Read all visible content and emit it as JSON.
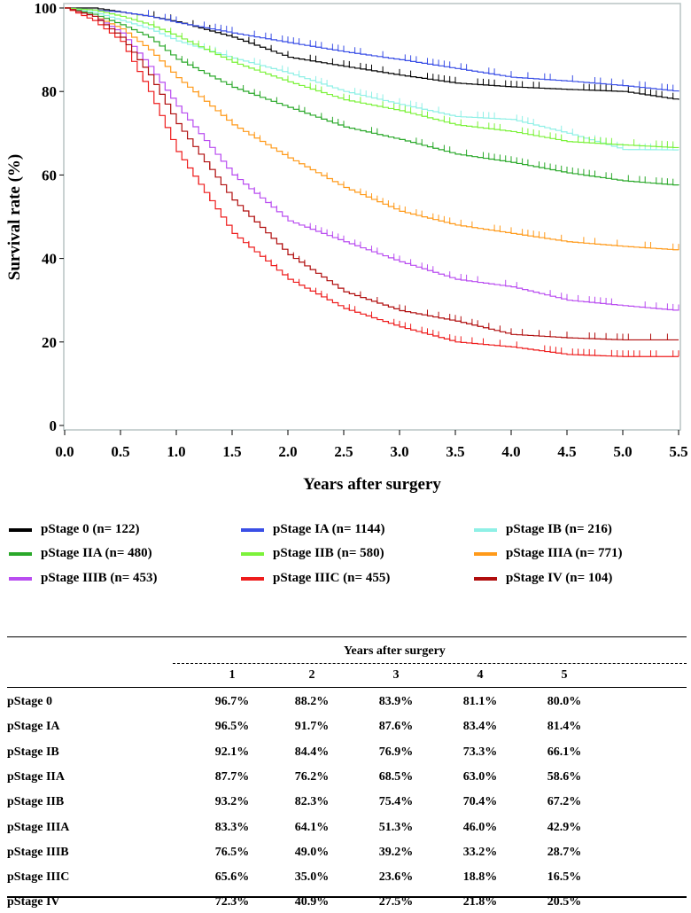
{
  "chart_data": {
    "type": "line",
    "title": "",
    "xlabel": "Years after surgery",
    "ylabel": "Survival rate (%)",
    "xlim": [
      0,
      5.5
    ],
    "ylim": [
      0,
      100
    ],
    "xticks": [
      "0.0",
      "0.5",
      "1.0",
      "1.5",
      "2.0",
      "2.5",
      "3.0",
      "3.5",
      "4.0",
      "4.5",
      "5.0",
      "5.5"
    ],
    "yticks": [
      "0",
      "20",
      "40",
      "60",
      "80",
      "100"
    ],
    "grid": false,
    "legend_position": "bottom",
    "x": [
      0,
      0.25,
      0.5,
      0.75,
      1,
      1.5,
      2,
      2.5,
      3,
      3.5,
      4,
      4.5,
      5,
      5.5
    ],
    "series": [
      {
        "name": "pStage 0 (n= 122)",
        "color": "#000000",
        "values": [
          100,
          100,
          99,
          98,
          96.7,
          93,
          88.2,
          86,
          83.9,
          82,
          81.1,
          80.5,
          80,
          78
        ]
      },
      {
        "name": "pStage IA (n= 1144)",
        "color": "#3a4fe6",
        "values": [
          100,
          99.5,
          99,
          98,
          96.5,
          94,
          91.7,
          89.5,
          87.6,
          85.5,
          83.4,
          82.5,
          81.4,
          80
        ]
      },
      {
        "name": "pStage IB (n= 216)",
        "color": "#8ff0e6",
        "values": [
          100,
          99,
          97,
          95,
          92.1,
          88,
          84.4,
          80,
          76.9,
          74,
          73.3,
          70,
          66.1,
          66
        ]
      },
      {
        "name": "pStage IIA (n= 480)",
        "color": "#2aa82a",
        "values": [
          100,
          98.5,
          96,
          93,
          87.7,
          81,
          76.2,
          71.5,
          68.5,
          65,
          63,
          60.5,
          58.6,
          57.5
        ]
      },
      {
        "name": "pStage IIB (n= 580)",
        "color": "#7cf23a",
        "values": [
          100,
          99.5,
          98,
          96,
          93.2,
          87,
          82.3,
          78,
          75.4,
          72,
          70.4,
          68,
          67.2,
          66.5
        ]
      },
      {
        "name": "pStage IIIA (n= 771)",
        "color": "#ff9a1a",
        "values": [
          100,
          98,
          95,
          90,
          83.3,
          72,
          64.1,
          57,
          51.3,
          48,
          46,
          44,
          42.9,
          42
        ]
      },
      {
        "name": "pStage IIIB (n= 453)",
        "color": "#b94df0",
        "values": [
          100,
          98,
          94,
          86,
          76.5,
          60,
          49,
          44,
          39.2,
          35,
          33.2,
          30,
          28.7,
          27.5
        ]
      },
      {
        "name": "pStage IIIC (n= 455)",
        "color": "#ee1c1c",
        "values": [
          100,
          97,
          92,
          80,
          65.6,
          46,
          35,
          28,
          23.6,
          20,
          18.8,
          17,
          16.5,
          16.5
        ]
      },
      {
        "name": "pStage IV (n= 104)",
        "color": "#b00d0d",
        "values": [
          100,
          98,
          93,
          84,
          72.3,
          54,
          40.9,
          32,
          27.5,
          25,
          21.8,
          21,
          20.5,
          20.5
        ]
      }
    ]
  },
  "table": {
    "group_header": "Years after surgery",
    "columns": [
      "1",
      "2",
      "3",
      "4",
      "5"
    ],
    "rows": [
      {
        "label": "pStage 0",
        "values": [
          "96.7%",
          "88.2%",
          "83.9%",
          "81.1%",
          "80.0%"
        ]
      },
      {
        "label": "pStage IA",
        "values": [
          "96.5%",
          "91.7%",
          "87.6%",
          "83.4%",
          "81.4%"
        ]
      },
      {
        "label": "pStage IB",
        "values": [
          "92.1%",
          "84.4%",
          "76.9%",
          "73.3%",
          "66.1%"
        ]
      },
      {
        "label": "pStage IIA",
        "values": [
          "87.7%",
          "76.2%",
          "68.5%",
          "63.0%",
          "58.6%"
        ]
      },
      {
        "label": "pStage IIB",
        "values": [
          "93.2%",
          "82.3%",
          "75.4%",
          "70.4%",
          "67.2%"
        ]
      },
      {
        "label": "pStage IIIA",
        "values": [
          "83.3%",
          "64.1%",
          "51.3%",
          "46.0%",
          "42.9%"
        ]
      },
      {
        "label": "pStage IIIB",
        "values": [
          "76.5%",
          "49.0%",
          "39.2%",
          "33.2%",
          "28.7%"
        ]
      },
      {
        "label": "pStage IIIC",
        "values": [
          "65.6%",
          "35.0%",
          "23.6%",
          "18.8%",
          "16.5%"
        ]
      },
      {
        "label": "pStage IV",
        "values": [
          "72.3%",
          "40.9%",
          "27.5%",
          "21.8%",
          "20.5%"
        ]
      }
    ]
  }
}
